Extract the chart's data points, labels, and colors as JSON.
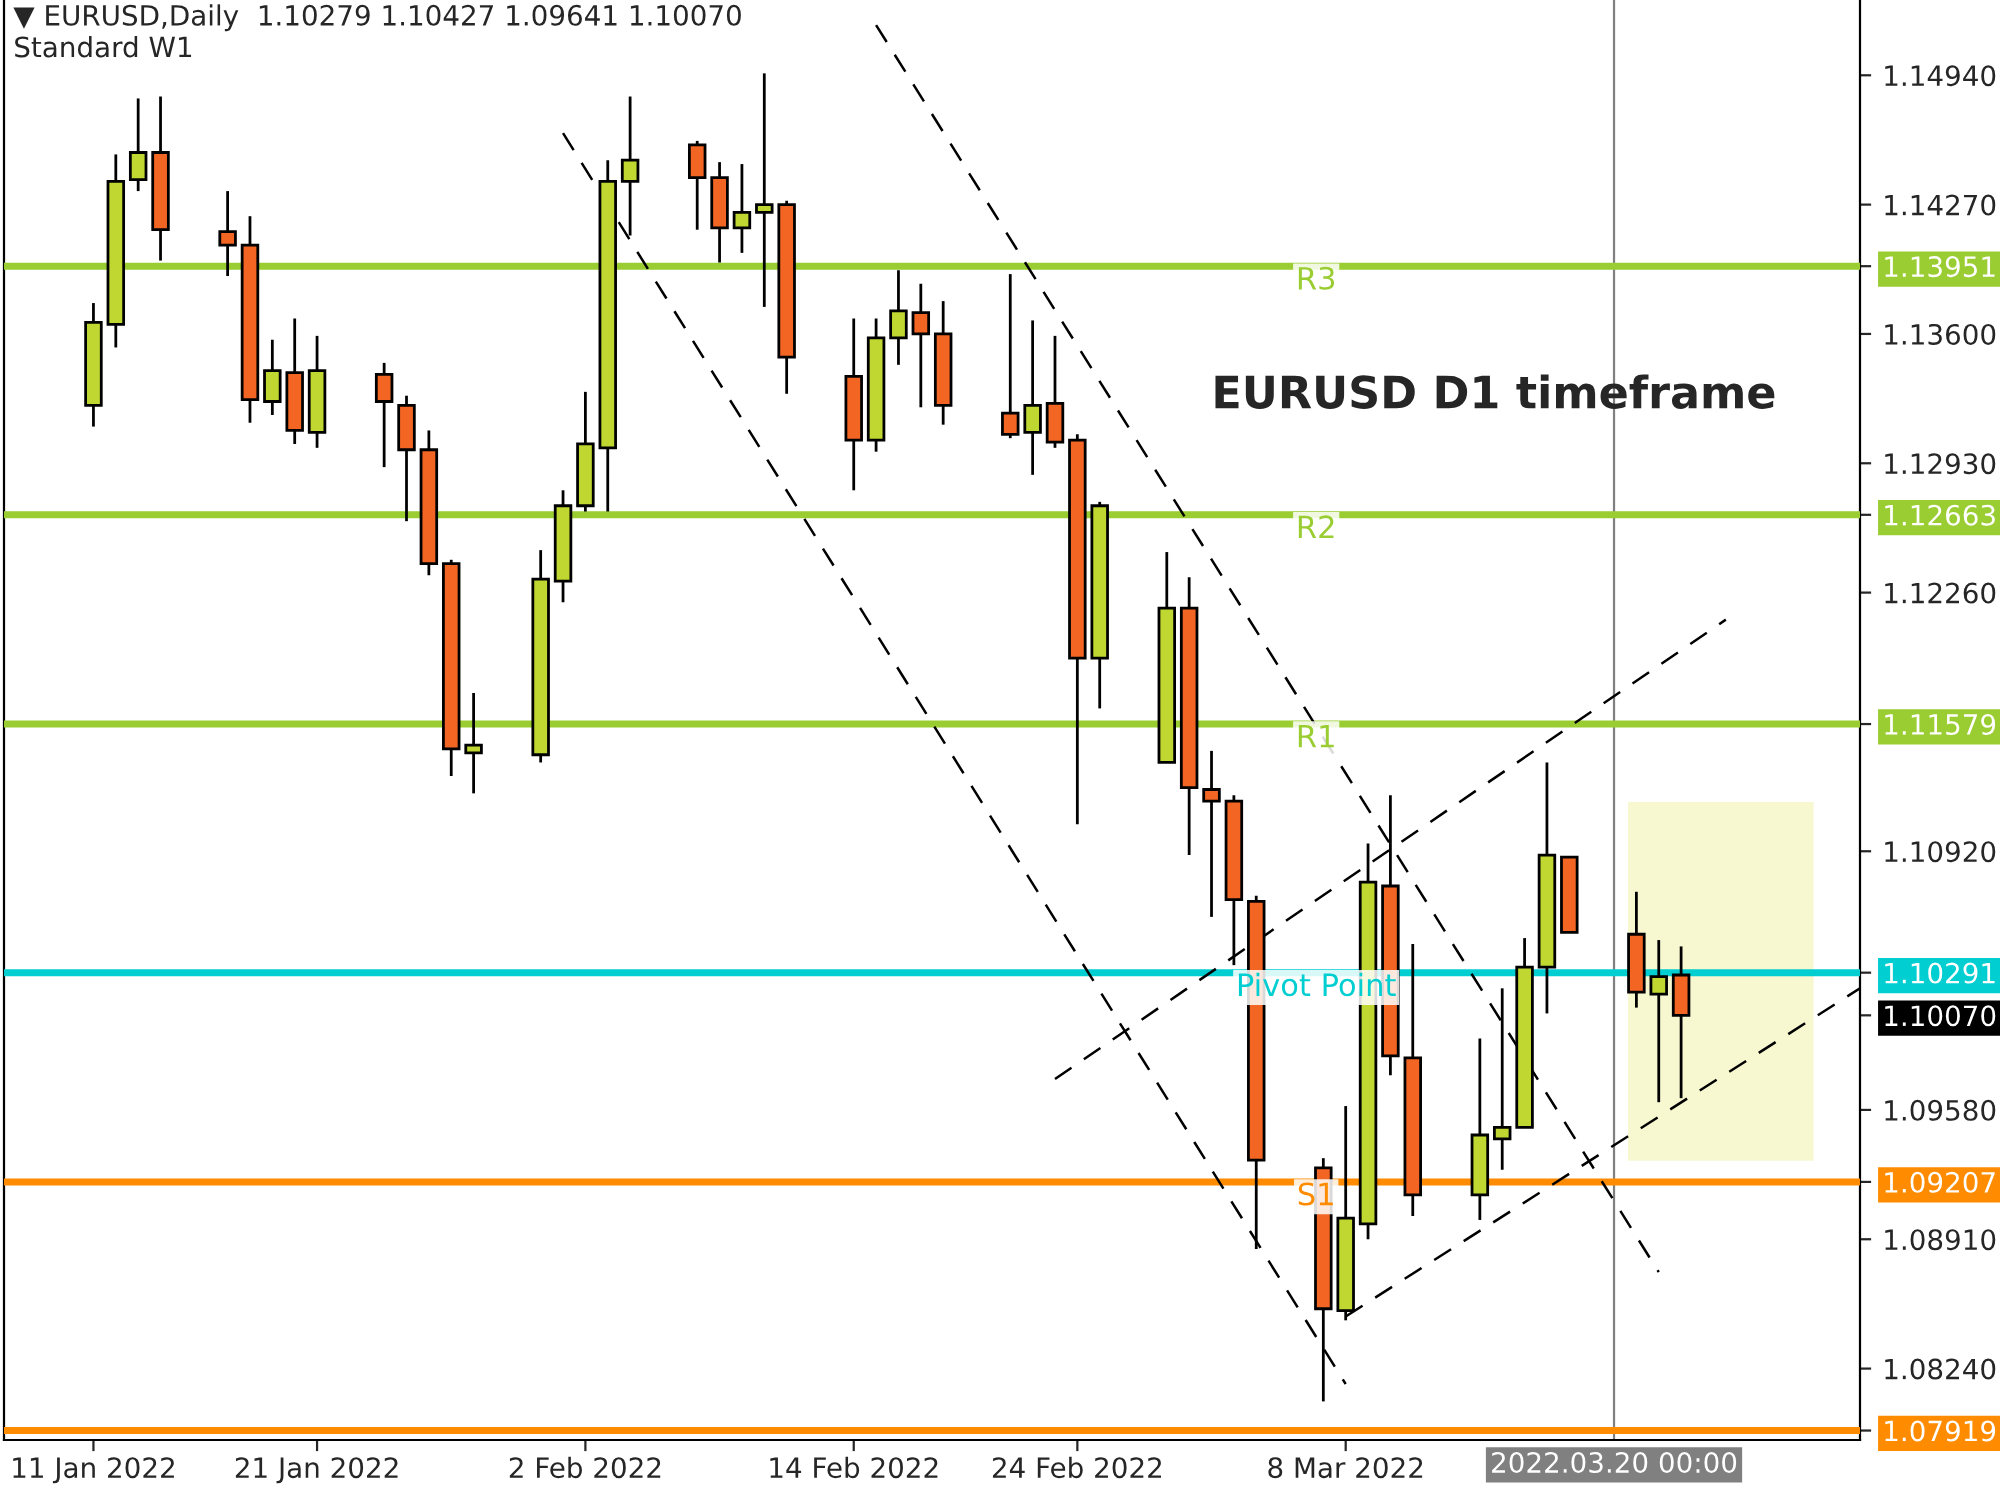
{
  "chart_data": {
    "type": "candlestick",
    "title": "▼ EURUSD,Daily  1.10279 1.10427 1.09641 1.10070",
    "subtitle": "Standard W1",
    "x": [
      "2022-01-11",
      "2022-01-12",
      "2022-01-13",
      "2022-01-14",
      "2022-01-17",
      "2022-01-18",
      "2022-01-19",
      "2022-01-20",
      "2022-01-21",
      "2022-01-24",
      "2022-01-25",
      "2022-01-26",
      "2022-01-27",
      "2022-01-28",
      "2022-01-31",
      "2022-02-01",
      "2022-02-02",
      "2022-02-03",
      "2022-02-04",
      "2022-02-07",
      "2022-02-08",
      "2022-02-09",
      "2022-02-10",
      "2022-02-11",
      "2022-02-14",
      "2022-02-15",
      "2022-02-16",
      "2022-02-17",
      "2022-02-18",
      "2022-02-21",
      "2022-02-22",
      "2022-02-23",
      "2022-02-24",
      "2022-02-25",
      "2022-02-28",
      "2022-03-01",
      "2022-03-02",
      "2022-03-03",
      "2022-03-04",
      "2022-03-07",
      "2022-03-08",
      "2022-03-09",
      "2022-03-10",
      "2022-03-11",
      "2022-03-14",
      "2022-03-15",
      "2022-03-16",
      "2022-03-17",
      "2022-03-18",
      "2022-03-21",
      "2022-03-22",
      "2022-03-23"
    ],
    "ohlc": [
      [
        1.1323,
        1.1376,
        1.1312,
        1.1366
      ],
      [
        1.1365,
        1.1453,
        1.1353,
        1.1439
      ],
      [
        1.144,
        1.1482,
        1.1434,
        1.1454
      ],
      [
        1.1454,
        1.1483,
        1.1398,
        1.1414
      ],
      [
        1.1413,
        1.1434,
        1.139,
        1.1406
      ],
      [
        1.1406,
        1.1421,
        1.1314,
        1.1326
      ],
      [
        1.1325,
        1.1357,
        1.1318,
        1.1341
      ],
      [
        1.134,
        1.1368,
        1.1303,
        1.131
      ],
      [
        1.1309,
        1.1359,
        1.1301,
        1.1341
      ],
      [
        1.1339,
        1.1345,
        1.1291,
        1.1325
      ],
      [
        1.1323,
        1.1328,
        1.1263,
        1.13
      ],
      [
        1.13,
        1.131,
        1.1235,
        1.1241
      ],
      [
        1.1241,
        1.1243,
        1.1131,
        1.1145
      ],
      [
        1.1143,
        1.1174,
        1.1122,
        1.1147
      ],
      [
        1.1142,
        1.1248,
        1.1138,
        1.1233
      ],
      [
        1.1232,
        1.1279,
        1.1221,
        1.1271
      ],
      [
        1.1271,
        1.133,
        1.1268,
        1.1303
      ],
      [
        1.1301,
        1.145,
        1.1268,
        1.1439
      ],
      [
        1.1439,
        1.1483,
        1.1411,
        1.145
      ],
      [
        1.1458,
        1.146,
        1.1414,
        1.1441
      ],
      [
        1.1441,
        1.1449,
        1.1397,
        1.1415
      ],
      [
        1.1415,
        1.1448,
        1.1402,
        1.1423
      ],
      [
        1.1423,
        1.1495,
        1.1374,
        1.1427
      ],
      [
        1.1427,
        1.1429,
        1.1329,
        1.1348
      ],
      [
        1.1338,
        1.1368,
        1.1279,
        1.1305
      ],
      [
        1.1305,
        1.1368,
        1.1299,
        1.1358
      ],
      [
        1.1358,
        1.1393,
        1.1344,
        1.1372
      ],
      [
        1.1371,
        1.1386,
        1.1322,
        1.136
      ],
      [
        1.136,
        1.1377,
        1.1313,
        1.1323
      ],
      [
        1.1319,
        1.1391,
        1.1306,
        1.1308
      ],
      [
        1.1309,
        1.1367,
        1.1287,
        1.1323
      ],
      [
        1.1324,
        1.1359,
        1.1301,
        1.1304
      ],
      [
        1.1305,
        1.1308,
        1.1106,
        1.1192
      ],
      [
        1.1192,
        1.1273,
        1.1166,
        1.1271
      ],
      [
        1.1138,
        1.1247,
        1.1138,
        1.1218
      ],
      [
        1.1218,
        1.1234,
        1.109,
        1.1125
      ],
      [
        1.1124,
        1.1144,
        1.1058,
        1.1118
      ],
      [
        1.1118,
        1.1121,
        1.1033,
        1.1067
      ],
      [
        1.1066,
        1.1069,
        1.0886,
        1.0932
      ],
      [
        1.0928,
        1.0933,
        1.0807,
        1.0855
      ],
      [
        1.0854,
        1.096,
        1.0849,
        1.0902
      ],
      [
        1.0899,
        1.1096,
        1.0891,
        1.1076
      ],
      [
        1.1074,
        1.1121,
        1.0976,
        1.0986
      ],
      [
        1.0985,
        1.1044,
        1.0903,
        1.0914
      ],
      [
        1.0914,
        1.0995,
        1.0901,
        1.0945
      ],
      [
        1.0943,
        1.1021,
        1.0927,
        1.0949
      ],
      [
        1.0949,
        1.1047,
        1.0949,
        1.1032
      ],
      [
        1.1032,
        1.1138,
        1.1008,
        1.109
      ],
      [
        1.1089,
        1.1089,
        1.105,
        1.105
      ],
      [
        1.1049,
        1.1071,
        1.1011,
        1.1019
      ],
      [
        1.1018,
        1.1046,
        1.0962,
        1.1027
      ],
      [
        1.10279,
        1.10427,
        1.09641,
        1.1007
      ]
    ],
    "colors": [
      "#bfd730",
      "#bfd730",
      "#bfd730",
      "#f26522",
      "#f26522",
      "#f26522",
      "#bfd730",
      "#f26522",
      "#bfd730",
      "#f26522",
      "#f26522",
      "#f26522",
      "#f26522",
      "#bfd730",
      "#bfd730",
      "#bfd730",
      "#bfd730",
      "#bfd730",
      "#bfd730",
      "#f26522",
      "#f26522",
      "#bfd730",
      "#bfd730",
      "#f26522",
      "#f26522",
      "#bfd730",
      "#bfd730",
      "#f26522",
      "#f26522",
      "#f26522",
      "#bfd730",
      "#f26522",
      "#f26522",
      "#bfd730",
      "#bfd730",
      "#f26522",
      "#f26522",
      "#f26522",
      "#f26522",
      "#f26522",
      "#bfd730",
      "#bfd730",
      "#f26522",
      "#f26522",
      "#bfd730",
      "#bfd730",
      "#bfd730",
      "#bfd730",
      "#f26522",
      "#f26522",
      "#bfd730",
      "#f26522"
    ],
    "series": [
      {
        "type": "line",
        "color": "#000000",
        "line_style": "dashed",
        "x": [
          "2022-02-01",
          "2022-03-08"
        ],
        "values": [
          1.1464,
          1.0816
        ]
      },
      {
        "type": "line",
        "color": "#000000",
        "line_style": "dashed",
        "x": [
          "2022-02-15",
          "2022-03-22"
        ],
        "values": [
          1.152,
          1.0874
        ]
      },
      {
        "type": "line",
        "color": "#000000",
        "line_style": "dashed",
        "x": [
          "2022-02-23",
          "2022-03-25"
        ],
        "values": [
          1.0974,
          1.1212
        ]
      },
      {
        "type": "line",
        "color": "#000000",
        "line_style": "dashed",
        "x": [
          "2022-03-08",
          "2022-03-31"
        ],
        "values": [
          1.0851,
          1.1021
        ]
      }
    ],
    "xlim": [
      "2022-01-07",
      "2022-03-31"
    ],
    "xticks": [
      {
        "value": "2022-01-11",
        "label": "11 Jan 2022"
      },
      {
        "value": "2022-01-21",
        "label": "21 Jan 2022"
      },
      {
        "value": "2022-02-02",
        "label": "2 Feb 2022"
      },
      {
        "value": "2022-02-14",
        "label": "14 Feb 2022"
      },
      {
        "value": "2022-02-24",
        "label": "24 Feb 2022"
      },
      {
        "value": "2022-03-08",
        "label": "8 Mar 2022"
      }
    ],
    "ylim": [
      1.0787,
      1.1533
    ],
    "yticks": [
      {
        "value": 1.1494,
        "label": "1.14940"
      },
      {
        "value": 1.1427,
        "label": "1.14270"
      },
      {
        "value": 1.13951,
        "label": "1.13951"
      },
      {
        "value": 1.136,
        "label": "1.13600"
      },
      {
        "value": 1.1293,
        "label": "1.12930"
      },
      {
        "value": 1.12663,
        "label": "1.12663"
      },
      {
        "value": 1.1226,
        "label": "1.12260"
      },
      {
        "value": 1.11579,
        "label": "1.11579"
      },
      {
        "value": 1.1092,
        "label": "1.10920"
      },
      {
        "value": 1.10291,
        "label": "1.10291"
      },
      {
        "value": 1.1007,
        "label": "1.10070"
      },
      {
        "value": 1.0958,
        "label": "1.09580"
      },
      {
        "value": 1.09207,
        "label": "1.09207"
      },
      {
        "value": 1.0891,
        "label": "1.08910"
      },
      {
        "value": 1.0824,
        "label": "1.08240"
      },
      {
        "value": 1.07919,
        "label": "1.07919"
      }
    ],
    "ref_lines": [
      {
        "axis": "y",
        "value": 1.13951,
        "label": "R3",
        "color": "#9acd32"
      },
      {
        "axis": "y",
        "value": 1.12663,
        "label": "R2",
        "color": "#9acd32"
      },
      {
        "axis": "y",
        "value": 1.11579,
        "label": "R1",
        "color": "#9acd32"
      },
      {
        "axis": "y",
        "value": 1.10291,
        "label": "Pivot Point",
        "color": "#00ced1"
      },
      {
        "axis": "y",
        "value": 1.09207,
        "label": "S1",
        "color": "#ff8c00"
      },
      {
        "axis": "y",
        "value": 1.07919,
        "color": "#ff8c00"
      },
      {
        "axis": "x",
        "value": "2022-03-20",
        "label": "2022.03.20 00:00",
        "color": "#808080"
      }
    ],
    "annotations": [
      "EURUSD D1 timeframe"
    ]
  }
}
